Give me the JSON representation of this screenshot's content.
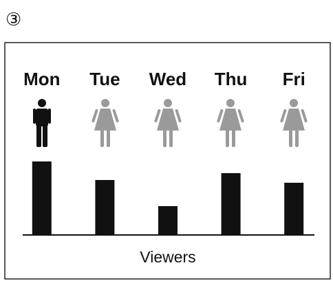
{
  "chart_data": {
    "type": "bar",
    "number": "③",
    "xlabel": "Viewers",
    "categories": [
      "Mon",
      "Tue",
      "Wed",
      "Thu",
      "Fri"
    ],
    "values": [
      106,
      79,
      41,
      89,
      75
    ],
    "color": "#111111"
  }
}
